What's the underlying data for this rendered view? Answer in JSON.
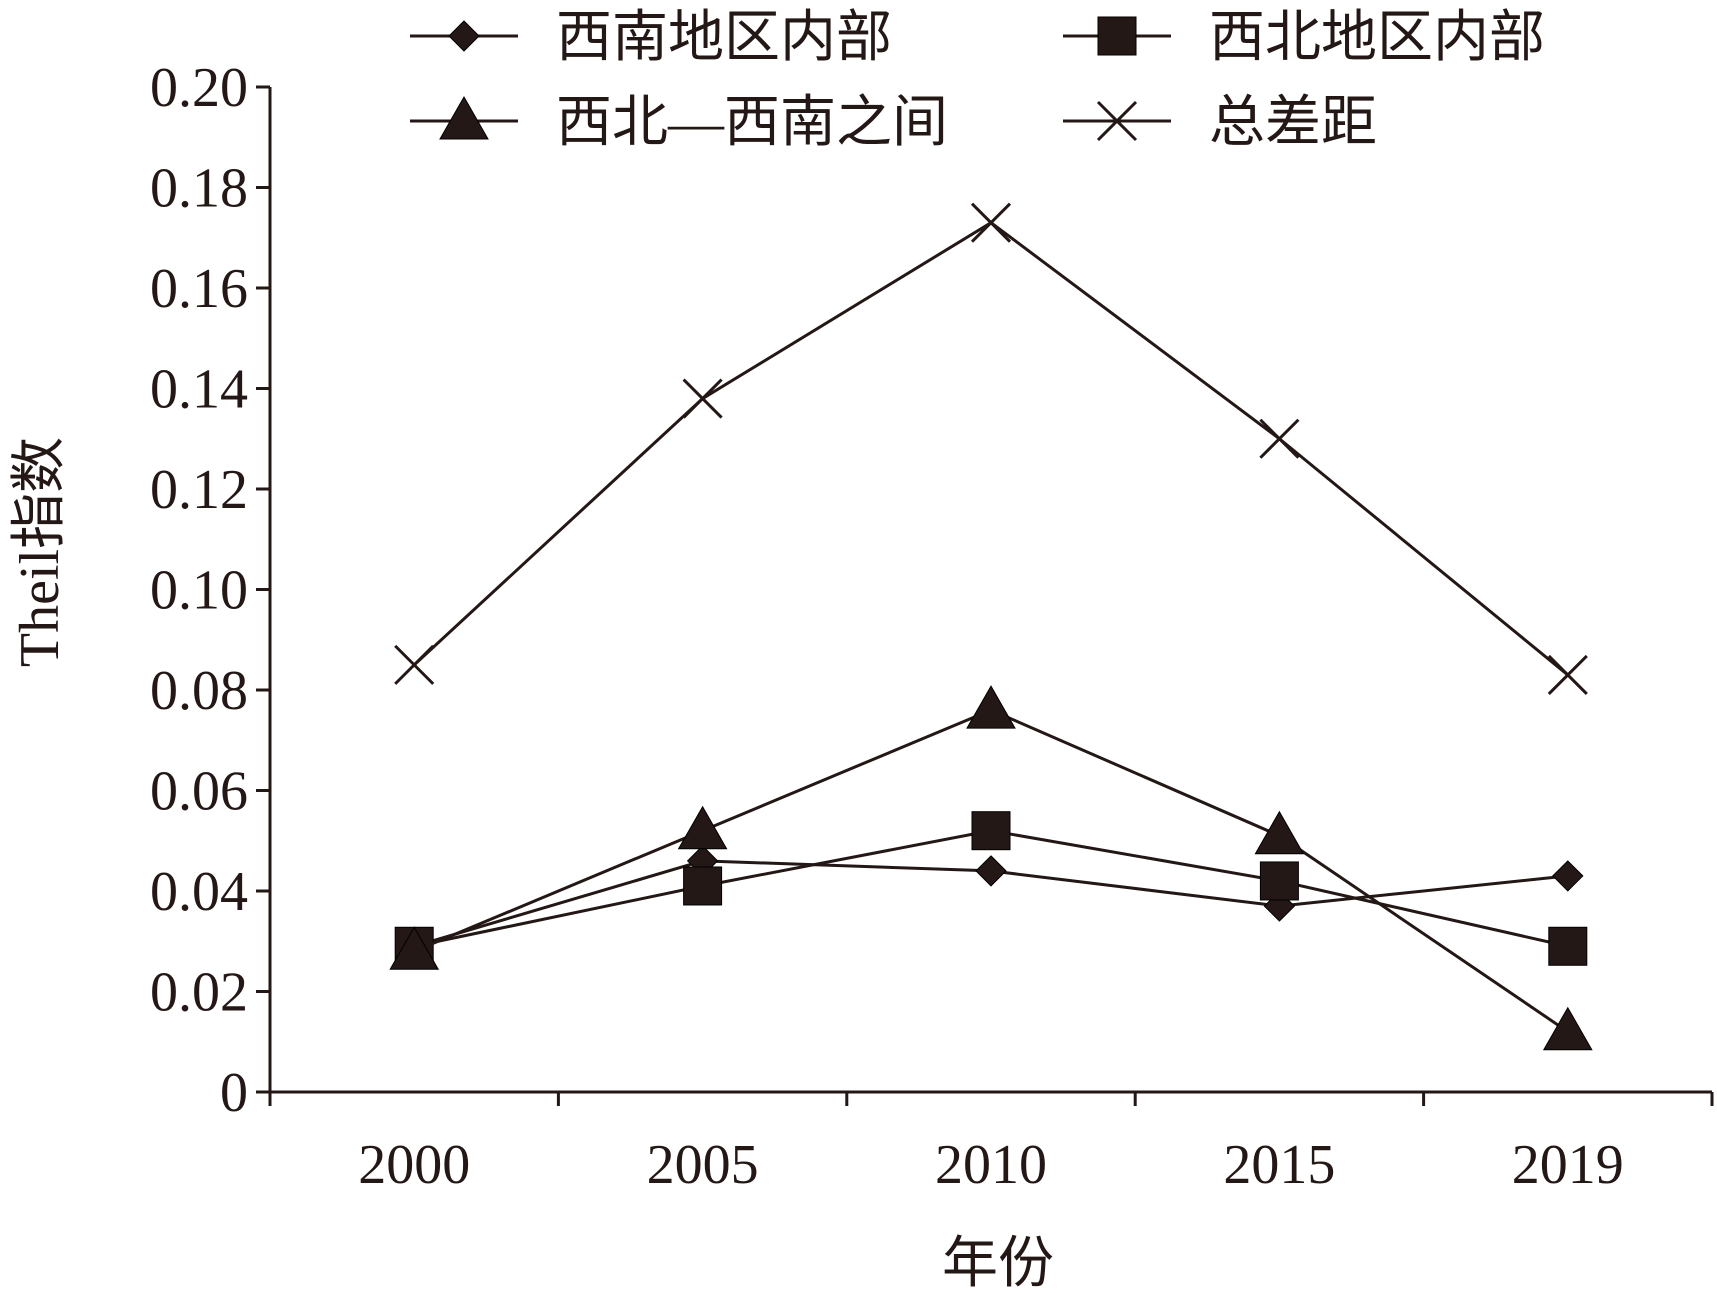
{
  "chart_data": {
    "type": "line",
    "xlabel": "年份",
    "ylabel": "Theil指数",
    "categories": [
      "2000",
      "2005",
      "2010",
      "2015",
      "2019"
    ],
    "yticks": [
      "0",
      "0.02",
      "0.04",
      "0.06",
      "0.08",
      "0.10",
      "0.12",
      "0.14",
      "0.16",
      "0.18",
      "0.20"
    ],
    "ylim": [
      0,
      0.2
    ],
    "grid": false,
    "legend_position": "top",
    "line_color": "#231815",
    "series": [
      {
        "name": "西南地区内部",
        "marker": "diamond",
        "values": [
          0.029,
          0.046,
          0.044,
          0.037,
          0.043
        ]
      },
      {
        "name": "西北地区内部",
        "marker": "square",
        "values": [
          0.029,
          0.041,
          0.052,
          0.042,
          0.029
        ]
      },
      {
        "name": "西北—西南之间",
        "marker": "triangle",
        "values": [
          0.028,
          0.052,
          0.076,
          0.051,
          0.012
        ]
      },
      {
        "name": "总差距",
        "marker": "x",
        "values": [
          0.085,
          0.138,
          0.173,
          0.13,
          0.083
        ]
      }
    ]
  }
}
